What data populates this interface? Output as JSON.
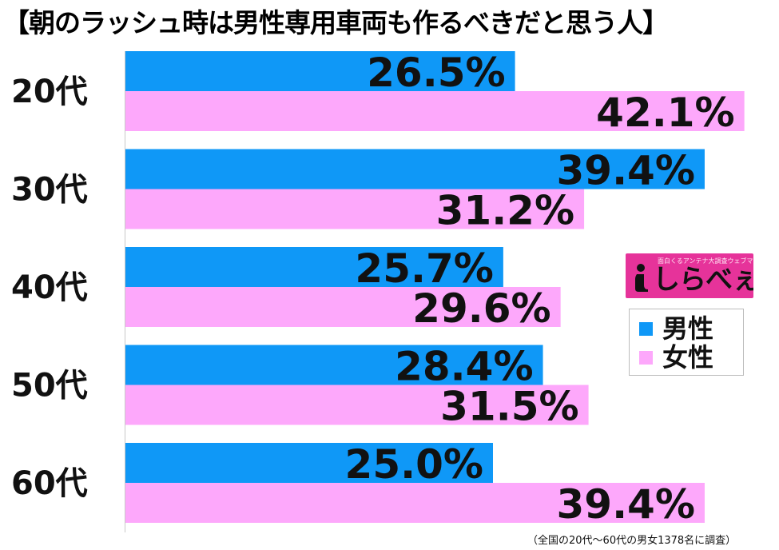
{
  "chart_data": {
    "type": "bar",
    "orientation": "horizontal",
    "title": "【朝のラッシュ時は男性専用車両も作るべきだと思う人】",
    "categories": [
      "20代",
      "30代",
      "40代",
      "50代",
      "60代"
    ],
    "series": [
      {
        "name": "男性",
        "color": "#0f98f7",
        "values": [
          26.5,
          39.4,
          25.7,
          28.4,
          25.0
        ],
        "labels": [
          "26.5%",
          "39.4%",
          "25.7%",
          "28.4%",
          "25.0%"
        ]
      },
      {
        "name": "女性",
        "color": "#fda8fb",
        "values": [
          42.1,
          31.2,
          29.6,
          31.5,
          39.4
        ],
        "labels": [
          "42.1%",
          "31.2%",
          "29.6%",
          "31.5%",
          "39.4%"
        ]
      }
    ],
    "xlim": [
      0,
      44
    ],
    "grid": false,
    "legend_position": "right",
    "footnote": "（全国の20代～60代の男女1378名に調査）"
  },
  "logo": {
    "tagline": "面白くるアンテナ大調査ウェブマガジン",
    "wordmark": "しらべぇ",
    "icon": "info-i-icon"
  }
}
